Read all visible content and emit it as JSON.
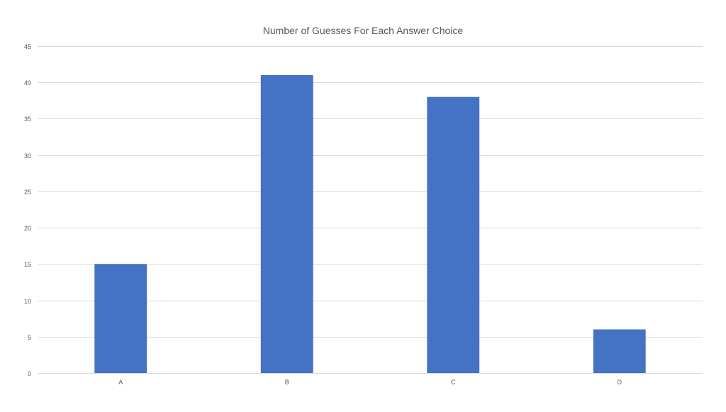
{
  "chart_data": {
    "type": "bar",
    "title": "Number of Guesses For Each Answer Choice",
    "categories": [
      "A",
      "B",
      "C",
      "D"
    ],
    "values": [
      15,
      41,
      38,
      6
    ],
    "xlabel": "",
    "ylabel": "",
    "ylim": [
      0,
      45
    ],
    "yticks": [
      "0",
      "5",
      "10",
      "15",
      "20",
      "25",
      "30",
      "35",
      "40",
      "45"
    ],
    "grid": true,
    "legend": "none",
    "colors": {
      "bar": "#4472C4",
      "grid": "#d9d9d9",
      "axis": "#d9d9d9",
      "tick_label": "#595959",
      "title": "#595959"
    }
  }
}
